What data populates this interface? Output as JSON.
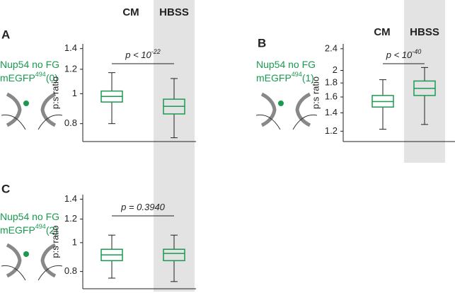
{
  "chart_data": [
    {
      "type": "box",
      "letter": "A",
      "label_lines": [
        "Nup54 no FG",
        "mEGFP"
      ],
      "label_sup": "494",
      "label_tail": "(0)",
      "categories": [
        "CM",
        "HBSS"
      ],
      "ylabel": "p:s ratio",
      "annotation": "p < 10",
      "annotation_sup": "-22",
      "log_scale": true,
      "ylim": [
        0.7,
        1.45
      ],
      "yticks": [
        0.8,
        1.0,
        1.2,
        1.4
      ],
      "color": "#1a9a50",
      "shade": "#e3e3e3",
      "boxes": [
        {
          "min": 0.8,
          "q1": 0.94,
          "median": 0.98,
          "q3": 1.02,
          "max": 1.17
        },
        {
          "min": 0.72,
          "q1": 0.86,
          "median": 0.91,
          "q3": 0.96,
          "max": 1.12
        }
      ]
    },
    {
      "type": "box",
      "letter": "B",
      "label_lines": [
        "Nup54 no FG",
        "mEGFP"
      ],
      "label_sup": "494",
      "label_tail": "(1)",
      "categories": [
        "CM",
        "HBSS"
      ],
      "ylabel": "p:s ratio",
      "annotation": "p < 10",
      "annotation_sup": "-40",
      "log_scale": true,
      "ylim": [
        1.1,
        2.5
      ],
      "yticks": [
        1.2,
        1.4,
        1.6,
        1.8,
        2.0,
        2.4
      ],
      "color": "#1a9a50",
      "shade": "#e3e3e3",
      "boxes": [
        {
          "min": 1.22,
          "q1": 1.47,
          "median": 1.54,
          "q3": 1.62,
          "max": 1.85
        },
        {
          "min": 1.27,
          "q1": 1.62,
          "median": 1.72,
          "q3": 1.83,
          "max": 2.05
        }
      ]
    },
    {
      "type": "box",
      "letter": "C",
      "label_lines": [
        "Nup54 no FG",
        "mEGFP"
      ],
      "label_sup": "494",
      "label_tail": "(2)",
      "ylabel": "p:s ratio",
      "annotation": "p = 0.3940",
      "log_scale": true,
      "ylim": [
        0.7,
        1.45
      ],
      "yticks": [
        0.8,
        1.0,
        1.2,
        1.4
      ],
      "color": "#1a9a50",
      "boxes": [
        {
          "min": 0.76,
          "q1": 0.87,
          "median": 0.91,
          "q3": 0.95,
          "max": 1.06
        },
        {
          "min": 0.74,
          "q1": 0.87,
          "median": 0.92,
          "q3": 0.95,
          "max": 1.06
        }
      ]
    }
  ]
}
